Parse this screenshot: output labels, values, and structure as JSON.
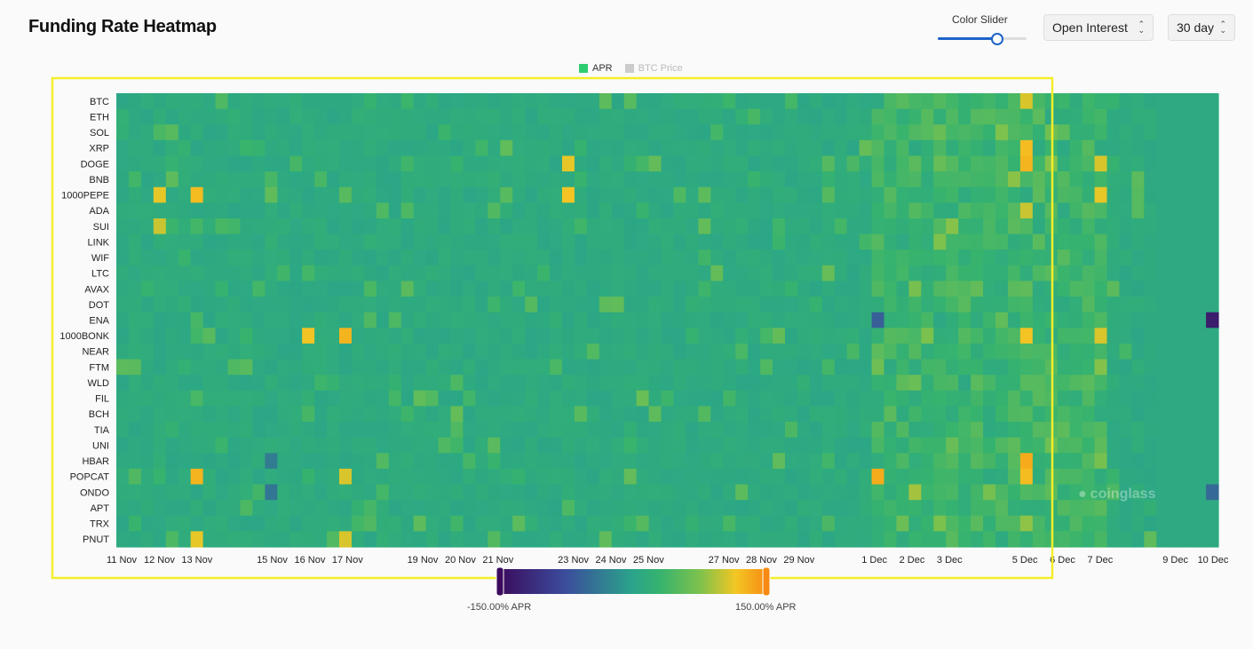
{
  "header": {
    "title": "Funding Rate Heatmap",
    "color_slider_label": "Color Slider",
    "color_slider_level": 0.67,
    "metric_select": "Open Interest",
    "range_select": "30 day"
  },
  "chart_data": {
    "type": "heatmap",
    "title": "Funding Rate Heatmap",
    "legend": [
      {
        "name": "APR",
        "color": "#2ecc71",
        "active": true
      },
      {
        "name": "BTC Price",
        "color": "#cccccc",
        "active": false
      }
    ],
    "legend_position": "top-center",
    "y_categories": [
      "BTC",
      "ETH",
      "SOL",
      "XRP",
      "DOGE",
      "BNB",
      "1000PEPE",
      "ADA",
      "SUI",
      "LINK",
      "WIF",
      "LTC",
      "AVAX",
      "DOT",
      "ENA",
      "1000BONK",
      "NEAR",
      "FTM",
      "WLD",
      "FIL",
      "BCH",
      "TIA",
      "UNI",
      "HBAR",
      "POPCAT",
      "ONDO",
      "APT",
      "TRX",
      "PNUT"
    ],
    "x_tick_labels": [
      "11 Nov",
      "12 Nov",
      "13 Nov",
      "15 Nov",
      "16 Nov",
      "17 Nov",
      "19 Nov",
      "20 Nov",
      "21 Nov",
      "23 Nov",
      "24 Nov",
      "25 Nov",
      "27 Nov",
      "28 Nov",
      "29 Nov",
      "1 Dec",
      "2 Dec",
      "3 Dec",
      "5 Dec",
      "6 Dec",
      "7 Dec",
      "9 Dec",
      "10 Dec"
    ],
    "x_range": [
      "11 Nov",
      "10 Dec"
    ],
    "value_unit": "APR %",
    "color_scale": {
      "min": -150,
      "max": 150,
      "min_label": "-150.00% APR",
      "max_label": "150.00% APR",
      "colors": [
        "#3b0a5c",
        "#3b4d9c",
        "#2aa58a",
        "#36b36e",
        "#7fc24c",
        "#f3c623",
        "#f78a12"
      ]
    },
    "highlights": [
      {
        "symbol": "BTC",
        "date": "5 Dec",
        "apr": 105
      },
      {
        "symbol": "XRP",
        "date": "5 Dec",
        "apr": 120
      },
      {
        "symbol": "DOGE",
        "date": "23 Nov",
        "apr": 110
      },
      {
        "symbol": "DOGE",
        "date": "5 Dec",
        "apr": 125
      },
      {
        "symbol": "DOGE",
        "date": "7 Dec",
        "apr": 105
      },
      {
        "symbol": "1000PEPE",
        "date": "12 Nov",
        "apr": 110
      },
      {
        "symbol": "1000PEPE",
        "date": "13 Nov",
        "apr": 120
      },
      {
        "symbol": "1000PEPE",
        "date": "23 Nov",
        "apr": 115
      },
      {
        "symbol": "1000PEPE",
        "date": "7 Dec",
        "apr": 110
      },
      {
        "symbol": "ADA",
        "date": "5 Dec",
        "apr": 100
      },
      {
        "symbol": "SUI",
        "date": "12 Nov",
        "apr": 100
      },
      {
        "symbol": "1000BONK",
        "date": "16 Nov",
        "apr": 115
      },
      {
        "symbol": "1000BONK",
        "date": "17 Nov",
        "apr": 125
      },
      {
        "symbol": "1000BONK",
        "date": "5 Dec",
        "apr": 115
      },
      {
        "symbol": "1000BONK",
        "date": "7 Dec",
        "apr": 105
      },
      {
        "symbol": "HBAR",
        "date": "5 Dec",
        "apr": 130
      },
      {
        "symbol": "POPCAT",
        "date": "13 Nov",
        "apr": 125
      },
      {
        "symbol": "POPCAT",
        "date": "17 Nov",
        "apr": 105
      },
      {
        "symbol": "POPCAT",
        "date": "1 Dec",
        "apr": 130
      },
      {
        "symbol": "POPCAT",
        "date": "5 Dec",
        "apr": 120
      },
      {
        "symbol": "PNUT",
        "date": "13 Nov",
        "apr": 110
      },
      {
        "symbol": "PNUT",
        "date": "17 Nov",
        "apr": 105
      },
      {
        "symbol": "ENA",
        "date": "10 Dec",
        "apr": -130
      },
      {
        "symbol": "ENA",
        "date": "1 Dec",
        "apr": -60
      },
      {
        "symbol": "ONDO",
        "date": "10 Dec",
        "apr": -50
      },
      {
        "symbol": "ONDO",
        "date": "15 Nov",
        "apr": -40
      },
      {
        "symbol": "HBAR",
        "date": "15 Nov",
        "apr": -35
      }
    ],
    "baseline_apr": 11
  },
  "watermark": "coinglass"
}
